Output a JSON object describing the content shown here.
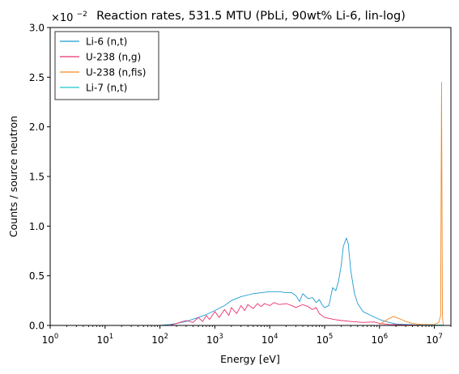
{
  "chart_data": {
    "type": "line",
    "title": "Reaction rates, 531.5 MTU (PbLi, 90wt% Li-6, lin-log)",
    "xlabel": "Energy [eV]",
    "ylabel": "Counts / source neutron",
    "y_multiplier_base": "×10",
    "y_multiplier_exp": "−2",
    "x_scale": "log",
    "xlim": [
      1,
      20000000
    ],
    "ylim": [
      0,
      0.03
    ],
    "grid": false,
    "legend_position": "top-left",
    "x_ticks": [
      {
        "value": 1,
        "base": "10",
        "exp": "0"
      },
      {
        "value": 10,
        "base": "10",
        "exp": "1"
      },
      {
        "value": 100,
        "base": "10",
        "exp": "2"
      },
      {
        "value": 1000,
        "base": "10",
        "exp": "3"
      },
      {
        "value": 10000,
        "base": "10",
        "exp": "4"
      },
      {
        "value": 100000,
        "base": "10",
        "exp": "5"
      },
      {
        "value": 1000000,
        "base": "10",
        "exp": "6"
      },
      {
        "value": 10000000,
        "base": "10",
        "exp": "7"
      }
    ],
    "y_ticks": [
      {
        "value": 0,
        "label": "0.0"
      },
      {
        "value": 0.005,
        "label": "0.5"
      },
      {
        "value": 0.01,
        "label": "1.0"
      },
      {
        "value": 0.015,
        "label": "1.5"
      },
      {
        "value": 0.02,
        "label": "2.0"
      },
      {
        "value": 0.025,
        "label": "2.5"
      },
      {
        "value": 0.03,
        "label": "3.0"
      }
    ],
    "series": [
      {
        "name": "Li-6 (n,t)",
        "color": "#1f9bd0",
        "points": [
          [
            100,
            0.0
          ],
          [
            150,
            0.0001
          ],
          [
            200,
            0.0002
          ],
          [
            300,
            0.0004
          ],
          [
            500,
            0.0008
          ],
          [
            700,
            0.0011
          ],
          [
            1000,
            0.0015
          ],
          [
            1500,
            0.002
          ],
          [
            2000,
            0.0025
          ],
          [
            3000,
            0.0029
          ],
          [
            5000,
            0.0032
          ],
          [
            7000,
            0.0033
          ],
          [
            10000,
            0.0034
          ],
          [
            15000,
            0.0034
          ],
          [
            20000,
            0.0033
          ],
          [
            25000,
            0.0033
          ],
          [
            30000,
            0.003
          ],
          [
            35000,
            0.0024
          ],
          [
            40000,
            0.0032
          ],
          [
            50000,
            0.0027
          ],
          [
            60000,
            0.0028
          ],
          [
            70000,
            0.0023
          ],
          [
            80000,
            0.0026
          ],
          [
            90000,
            0.0021
          ],
          [
            100000,
            0.0018
          ],
          [
            120000,
            0.002
          ],
          [
            140000,
            0.0038
          ],
          [
            160000,
            0.0035
          ],
          [
            180000,
            0.0045
          ],
          [
            200000,
            0.006
          ],
          [
            220000,
            0.008
          ],
          [
            250000,
            0.0088
          ],
          [
            270000,
            0.0082
          ],
          [
            300000,
            0.0055
          ],
          [
            350000,
            0.0032
          ],
          [
            400000,
            0.0022
          ],
          [
            500000,
            0.0014
          ],
          [
            700000,
            0.001
          ],
          [
            1000000,
            0.0006
          ],
          [
            1500000,
            0.0003
          ],
          [
            2000000,
            0.00015
          ],
          [
            3000000,
            0.0001
          ],
          [
            5000000,
            5e-05
          ],
          [
            10000000,
            3e-05
          ],
          [
            14000000,
            0.0
          ]
        ]
      },
      {
        "name": "U-238 (n,g)",
        "color": "#e8306e",
        "points": [
          [
            150,
            0.0
          ],
          [
            200,
            0.0002
          ],
          [
            300,
            0.0005
          ],
          [
            400,
            0.0003
          ],
          [
            500,
            0.0008
          ],
          [
            600,
            0.0004
          ],
          [
            700,
            0.001
          ],
          [
            800,
            0.0006
          ],
          [
            1000,
            0.0014
          ],
          [
            1200,
            0.0008
          ],
          [
            1500,
            0.0016
          ],
          [
            1800,
            0.001
          ],
          [
            2000,
            0.0018
          ],
          [
            2500,
            0.0012
          ],
          [
            3000,
            0.002
          ],
          [
            3500,
            0.0015
          ],
          [
            4000,
            0.0021
          ],
          [
            5000,
            0.0017
          ],
          [
            6000,
            0.0022
          ],
          [
            7000,
            0.0019
          ],
          [
            8000,
            0.0022
          ],
          [
            10000,
            0.002
          ],
          [
            12000,
            0.0023
          ],
          [
            15000,
            0.0021
          ],
          [
            20000,
            0.0022
          ],
          [
            25000,
            0.002
          ],
          [
            30000,
            0.0018
          ],
          [
            40000,
            0.0021
          ],
          [
            50000,
            0.0019
          ],
          [
            60000,
            0.0016
          ],
          [
            70000,
            0.0018
          ],
          [
            80000,
            0.0012
          ],
          [
            100000,
            0.0008
          ],
          [
            150000,
            0.0006
          ],
          [
            200000,
            0.0005
          ],
          [
            300000,
            0.0004
          ],
          [
            500000,
            0.0003
          ],
          [
            800000,
            0.00035
          ],
          [
            1000000,
            0.0002
          ],
          [
            1500000,
            0.0001
          ],
          [
            3000000,
            5e-05
          ],
          [
            10000000,
            0.0
          ]
        ]
      },
      {
        "name": "U-238 (n,fis)",
        "color": "#f08a24",
        "points": [
          [
            1000000,
            0.0001
          ],
          [
            1500000,
            0.0007
          ],
          [
            1800000,
            0.0009
          ],
          [
            2000000,
            0.0008
          ],
          [
            2500000,
            0.0006
          ],
          [
            3000000,
            0.0004
          ],
          [
            4000000,
            0.0002
          ],
          [
            6000000,
            0.0001
          ],
          [
            10000000,
            0.0001
          ],
          [
            12000000,
            0.0003
          ],
          [
            13000000,
            0.001
          ],
          [
            13500000,
            0.0245
          ],
          [
            14000000,
            0.001
          ],
          [
            14500000,
            0.0
          ]
        ]
      },
      {
        "name": "Li-7 (n,t)",
        "color": "#1cc7c7",
        "points": [
          [
            3000000,
            0.0
          ],
          [
            6000000,
            2e-05
          ],
          [
            10000000,
            3e-05
          ],
          [
            13500000,
            5e-05
          ],
          [
            14500000,
            0.0
          ]
        ]
      }
    ]
  }
}
